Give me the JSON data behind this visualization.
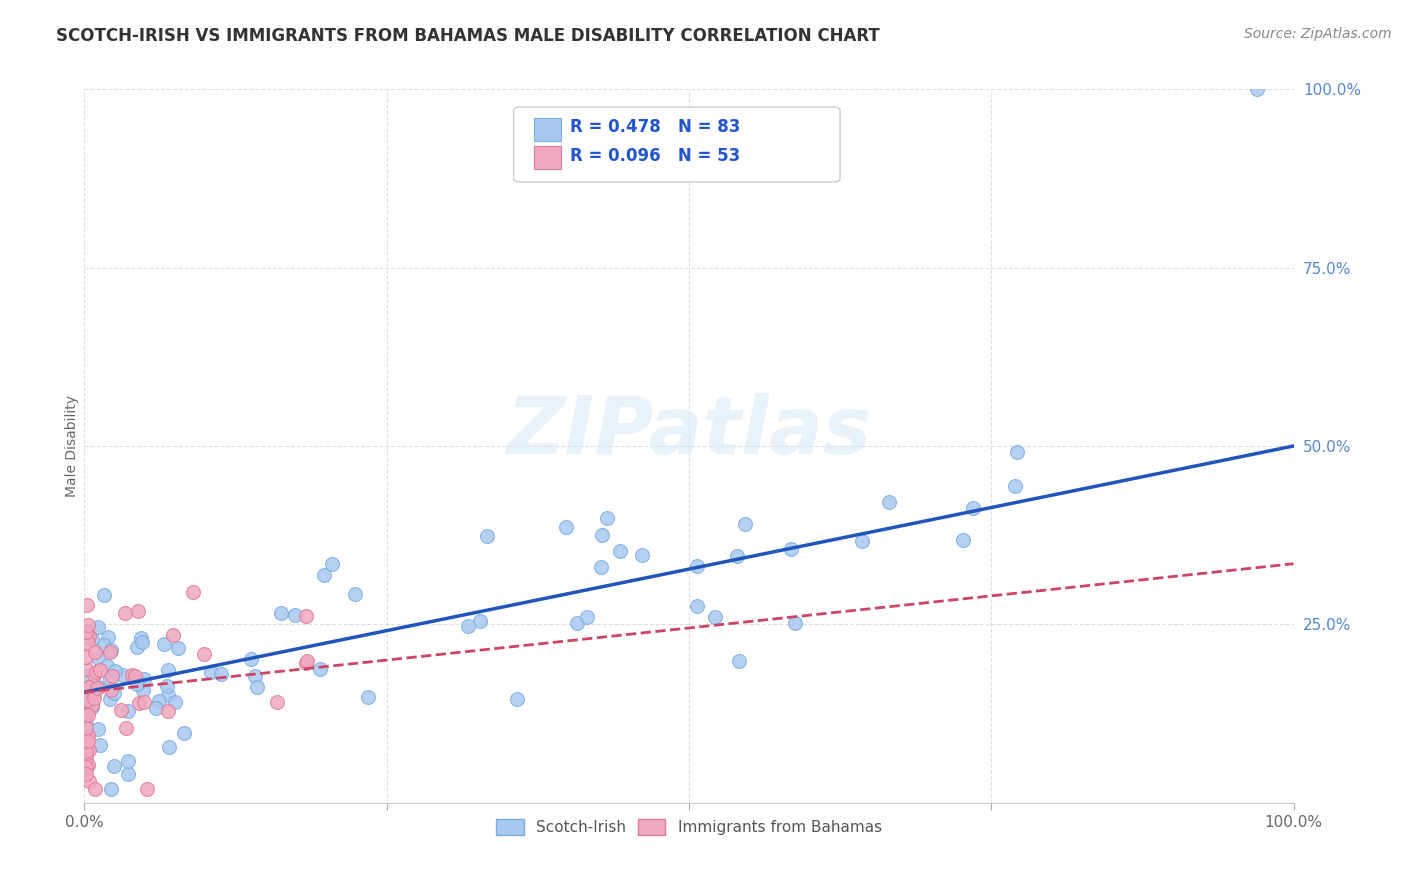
{
  "title": "SCOTCH-IRISH VS IMMIGRANTS FROM BAHAMAS MALE DISABILITY CORRELATION CHART",
  "source": "Source: ZipAtlas.com",
  "ylabel": "Male Disability",
  "y_ticks": [
    0.0,
    0.25,
    0.5,
    0.75,
    1.0
  ],
  "y_tick_labels": [
    "",
    "25.0%",
    "50.0%",
    "75.0%",
    "100.0%"
  ],
  "x_tick_labels_show": [
    "0.0%",
    "100.0%"
  ],
  "legend_text1": "R = 0.478   N = 83",
  "legend_text2": "R = 0.096   N = 53",
  "series1_label": "Scotch-Irish",
  "series2_label": "Immigrants from Bahamas",
  "series1_color": "#a8c8f0",
  "series1_edge_color": "#7aacde",
  "series2_color": "#f0a8be",
  "series2_edge_color": "#de7a9a",
  "series1_line_color": "#2255bb",
  "series2_line_color": "#cc4466",
  "background_color": "#ffffff",
  "grid_color": "#cccccc",
  "watermark": "ZIPatlas",
  "title_fontsize": 12,
  "tick_fontsize": 11,
  "legend_fontsize": 12,
  "source_fontsize": 10,
  "ylabel_fontsize": 10,
  "scatter_size": 100,
  "line1_intercept": 0.155,
  "line1_slope": 0.345,
  "line2_intercept": 0.155,
  "line2_slope": 0.18
}
